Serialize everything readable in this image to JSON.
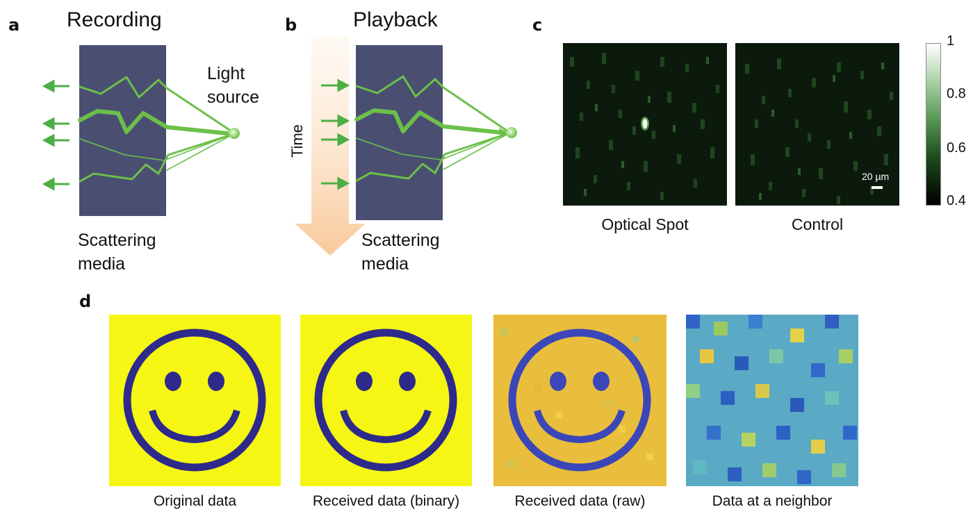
{
  "panel_a": {
    "letter": "a",
    "title": "Recording",
    "source_label_line1": "Light",
    "source_label_line2": "source",
    "media_label_line1": "Scattering",
    "media_label_line2": "media"
  },
  "panel_b": {
    "letter": "b",
    "title": "Playback",
    "time_label": "Time",
    "media_label_line1": "Scattering",
    "media_label_line2": "media"
  },
  "panel_c": {
    "letter": "c",
    "image_left_caption": "Optical Spot",
    "image_right_caption": "Control",
    "scale_bar_label": "20 µm",
    "colorbar_ticks": [
      "1",
      "0.8",
      "0.6",
      "0.4"
    ]
  },
  "panel_d": {
    "letter": "d",
    "captions": [
      "Original data",
      "Received data (binary)",
      "Received data (raw)",
      "Data at a neighbor"
    ]
  },
  "colors": {
    "green": "#6cc04a",
    "media": "#4a4f72",
    "yellow": "#f6f614",
    "navy": "#2d2a8c",
    "time_arrow": "#f9c99a"
  }
}
